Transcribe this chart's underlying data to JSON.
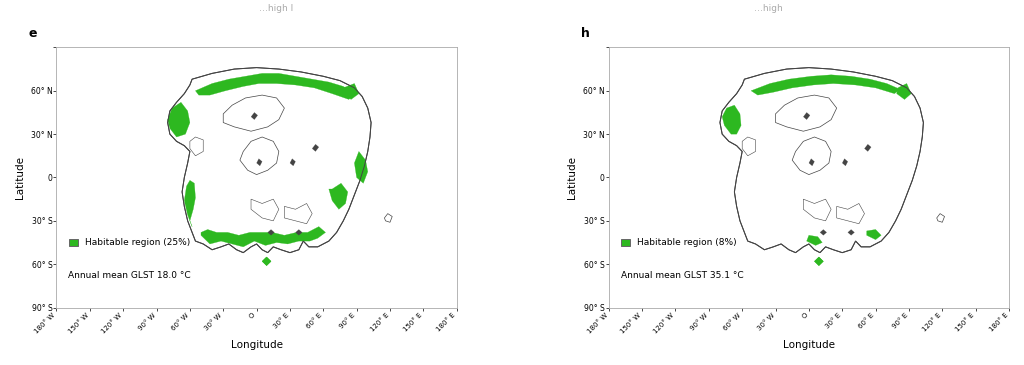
{
  "panels": [
    {
      "label": "e",
      "legend_text": "Habitable region (25%)",
      "subtitle": "Annual mean GLST 18.0 °C"
    },
    {
      "label": "h",
      "legend_text": "Habitable region (8%)",
      "subtitle": "Annual mean GLST 35.1 °C"
    }
  ],
  "xlim": [
    -180,
    180
  ],
  "ylim": [
    -90,
    90
  ],
  "xticks": [
    -180,
    -150,
    -120,
    -90,
    -60,
    -30,
    0,
    30,
    60,
    90,
    120,
    150,
    180
  ],
  "xtick_labels": [
    "180° W",
    "150° W",
    "120° W",
    "90° W",
    "60° W",
    "30° W",
    "O",
    "30° E",
    "60° E",
    "90° E",
    "120° E",
    "150° E",
    "180° E"
  ],
  "yticks": [
    -90,
    -60,
    -30,
    0,
    30,
    60,
    90
  ],
  "ytick_labels": [
    "90° S",
    "60° S",
    "30° S",
    "0",
    "30° N",
    "60° N",
    ""
  ],
  "xlabel": "Longitude",
  "ylabel": "Latitude",
  "continent_color": "white",
  "continent_edge_color": "#444444",
  "habitable_color": "#2db820",
  "background_color": "white"
}
